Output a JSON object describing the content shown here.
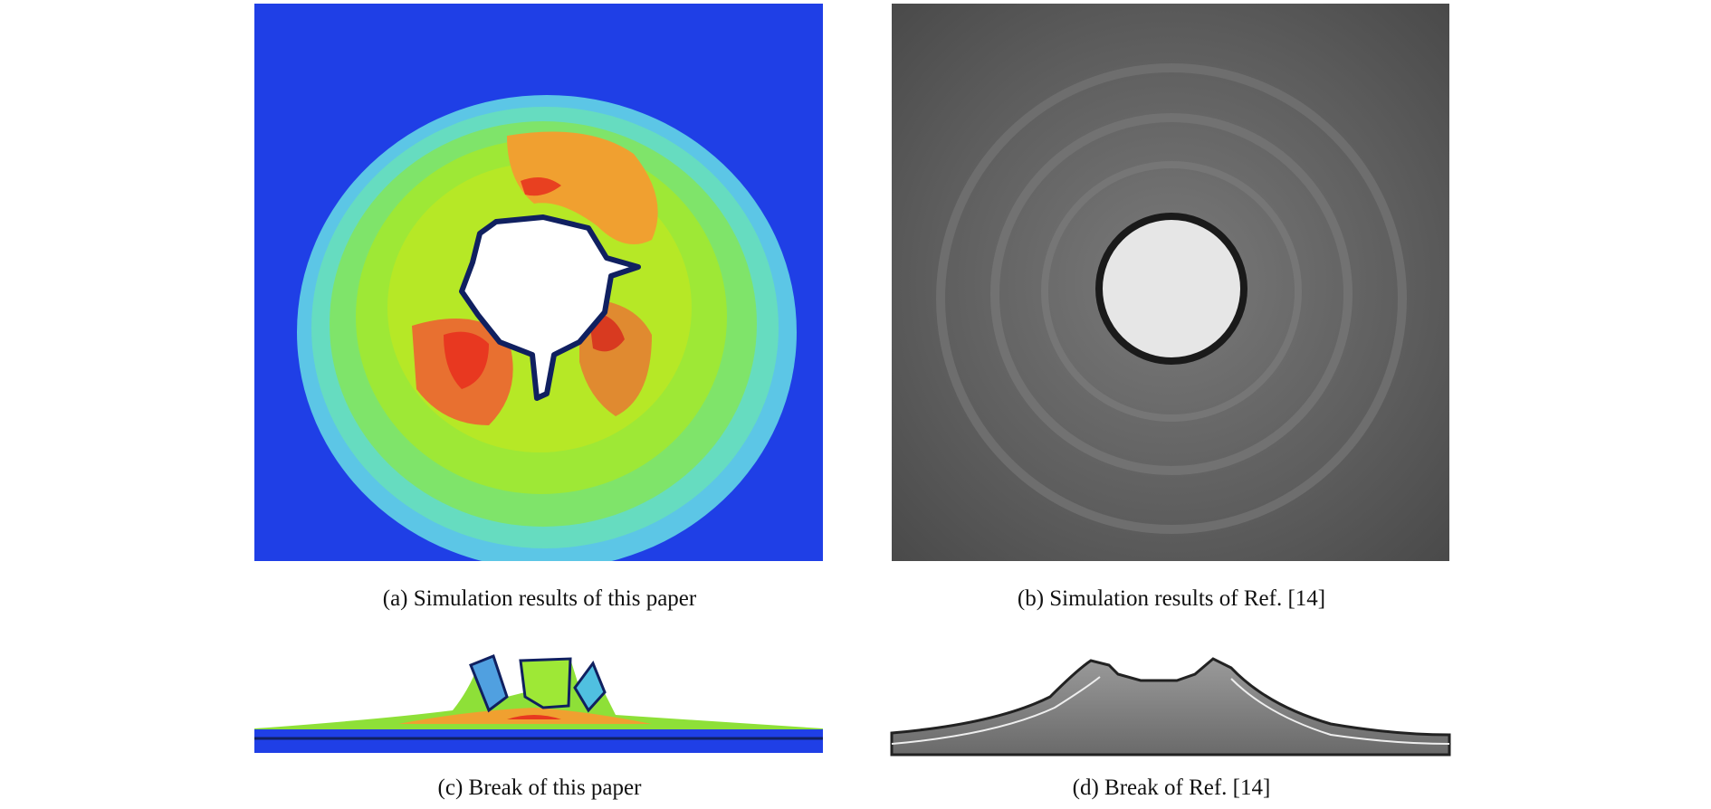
{
  "figure": {
    "panels": [
      {
        "caption": "(a) Simulation results of this paper"
      },
      {
        "caption": "(b) Simulation results of Ref. [14]"
      },
      {
        "caption": "(c) Break of this paper"
      },
      {
        "caption": "(d) Break of Ref. [14]"
      }
    ]
  }
}
